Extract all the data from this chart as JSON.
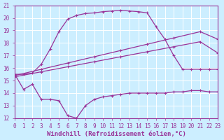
{
  "bg_color": "#cceeff",
  "grid_color": "#ffffff",
  "line_color": "#993399",
  "xlabel": "Windchill (Refroidissement éolien,°C)",
  "xlim": [
    0,
    23
  ],
  "ylim": [
    12,
    21
  ],
  "yticks": [
    12,
    13,
    14,
    15,
    16,
    17,
    18,
    19,
    20,
    21
  ],
  "xticks": [
    0,
    1,
    2,
    3,
    4,
    5,
    6,
    7,
    8,
    9,
    10,
    11,
    12,
    13,
    14,
    15,
    16,
    17,
    18,
    19,
    20,
    21,
    22,
    23
  ],
  "axis_fontsize": 6.5,
  "tick_fontsize": 5.5,
  "top_x": [
    0,
    1,
    2,
    3,
    4,
    5,
    6,
    7,
    8,
    9,
    10,
    11,
    12,
    13,
    14,
    15,
    16,
    17,
    18,
    19,
    20,
    21,
    22,
    23
  ],
  "top_y": [
    15.5,
    15.5,
    15.6,
    16.3,
    17.5,
    18.9,
    19.9,
    20.2,
    20.35,
    20.4,
    20.5,
    20.55,
    20.6,
    20.55,
    20.5,
    20.4,
    19.3,
    18.3,
    17.0,
    15.9,
    15.9,
    15.9,
    15.9,
    15.9
  ],
  "mid_up_x": [
    0,
    3,
    6,
    9,
    12,
    15,
    18,
    21,
    23
  ],
  "mid_up_y": [
    15.4,
    15.9,
    16.4,
    16.9,
    17.4,
    17.9,
    18.4,
    18.9,
    18.3
  ],
  "mid_lo_x": [
    0,
    3,
    6,
    9,
    12,
    15,
    18,
    21,
    23
  ],
  "mid_lo_y": [
    15.3,
    15.7,
    16.1,
    16.5,
    16.9,
    17.3,
    17.7,
    18.1,
    17.2
  ],
  "bot_x": [
    0,
    1,
    2,
    3,
    4,
    5,
    6,
    7,
    8,
    9,
    10,
    11,
    12,
    13,
    14,
    15,
    16,
    17,
    18,
    19,
    20,
    21,
    22,
    23
  ],
  "bot_y": [
    15.5,
    14.3,
    14.7,
    13.5,
    13.5,
    13.4,
    12.2,
    12.0,
    13.0,
    13.5,
    13.7,
    13.8,
    13.9,
    14.0,
    14.0,
    14.0,
    14.0,
    14.0,
    14.1,
    14.1,
    14.2,
    14.2,
    14.1,
    14.1
  ]
}
